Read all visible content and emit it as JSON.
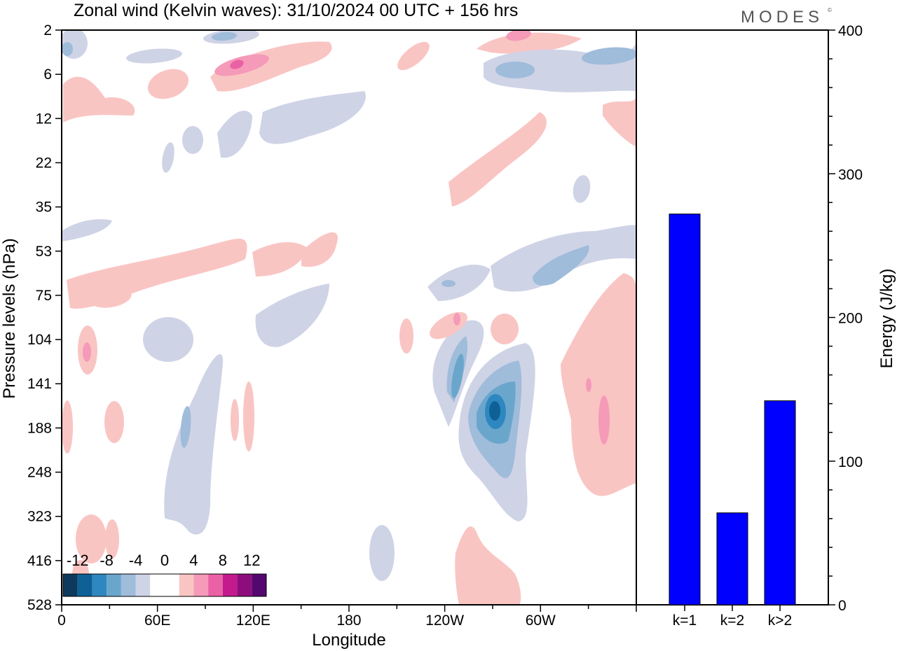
{
  "title": "Zonal wind (Kelvin waves):  31/10/2024  00 UTC  + 156 hrs",
  "logo": "MODES",
  "logo_mark": "©",
  "chart_data": [
    {
      "type": "heatmap",
      "title": "Zonal wind (Kelvin waves):  31/10/2024  00 UTC  + 156 hrs",
      "xlabel": "Longitude",
      "ylabel": "Pressure levels (hPa)",
      "x_ticks": [
        "0",
        "60E",
        "120E",
        "180",
        "120W",
        "60W"
      ],
      "y_ticks": [
        "2",
        "6",
        "12",
        "22",
        "35",
        "53",
        "75",
        "104",
        "141",
        "188",
        "248",
        "323",
        "416",
        "528"
      ],
      "y_scale": "pressure levels (index spaced)",
      "grid": false,
      "colorbar": {
        "placement": "bottom-left",
        "tick_labels": [
          "-12",
          "-8",
          "-4",
          "0",
          "4",
          "8",
          "12"
        ],
        "colors": [
          "#0d3a5c",
          "#0e6197",
          "#2f87c0",
          "#6aa6cc",
          "#9fbcda",
          "#cfd3e6",
          "#ffffff",
          "#ffffff",
          "#f9c5c3",
          "#f59ab8",
          "#ea61a6",
          "#c31a8e",
          "#8e0d7c",
          "#54076e"
        ]
      },
      "contours": [
        {
          "level": 4,
          "lon_center": 95,
          "pressure": 6,
          "description": "positive band 30E–170E, max >8"
        },
        {
          "level": -4,
          "lon_center": 75,
          "pressure": 15,
          "description": "negative patches 55E–175E"
        },
        {
          "level": -4,
          "lon_center": 250,
          "pressure": 7,
          "description": "negative band 240E–330E"
        },
        {
          "level": 4,
          "lon_center": 70,
          "pressure": 65,
          "description": "positive band 0–170E"
        },
        {
          "level": -4,
          "lon_center": 270,
          "pressure": 60,
          "description": "negative band 215E–330E"
        },
        {
          "level": -12,
          "lon_center": 238,
          "pressure": 170,
          "description": "strong negative core near 120W"
        },
        {
          "level": 4,
          "lon_center": 305,
          "pressure": 160,
          "description": "positive region 280E–340E"
        },
        {
          "level": 4,
          "lon_center": 240,
          "pressure": 450,
          "description": "positive near surface 205E–250E"
        }
      ]
    },
    {
      "type": "bar",
      "categories": [
        "k=1",
        "k=2",
        "k>2"
      ],
      "values": [
        272,
        64,
        142
      ],
      "ylabel": "Energy (J/kg)",
      "ylim": [
        0,
        400
      ],
      "y_ticks": [
        "0",
        "100",
        "200",
        "300",
        "400"
      ],
      "bar_color": "#0000ff"
    }
  ]
}
